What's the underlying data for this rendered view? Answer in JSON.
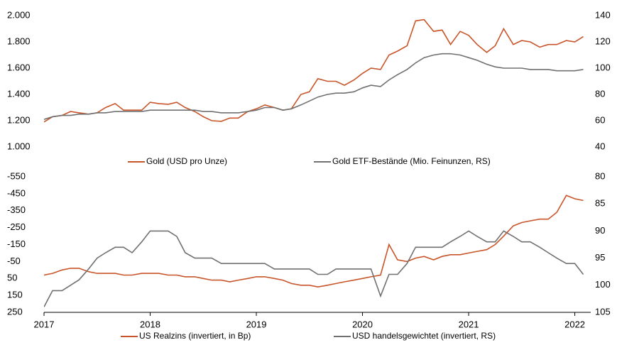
{
  "chart_data": [
    {
      "type": "line",
      "x": [
        2017.0,
        2017.08,
        2017.17,
        2017.25,
        2017.33,
        2017.42,
        2017.5,
        2017.58,
        2017.67,
        2017.75,
        2017.83,
        2017.92,
        2018.0,
        2018.08,
        2018.17,
        2018.25,
        2018.33,
        2018.42,
        2018.5,
        2018.58,
        2018.67,
        2018.75,
        2018.83,
        2018.92,
        2019.0,
        2019.08,
        2019.17,
        2019.25,
        2019.33,
        2019.42,
        2019.5,
        2019.58,
        2019.67,
        2019.75,
        2019.83,
        2019.92,
        2020.0,
        2020.08,
        2020.17,
        2020.25,
        2020.33,
        2020.42,
        2020.5,
        2020.58,
        2020.67,
        2020.75,
        2020.83,
        2020.92,
        2021.0,
        2021.08,
        2021.17,
        2021.25,
        2021.33,
        2021.42,
        2021.5,
        2021.58,
        2021.67,
        2021.75,
        2021.83,
        2021.92,
        2022.0,
        2022.08
      ],
      "xlim": [
        2017,
        2022.15
      ],
      "ylim": [
        1000,
        2000
      ],
      "yticks": [
        {
          "value": 1000,
          "label": "1.000"
        },
        {
          "value": 1200,
          "label": "1.200"
        },
        {
          "value": 1400,
          "label": "1.400"
        },
        {
          "value": 1600,
          "label": "1.600"
        },
        {
          "value": 1800,
          "label": "1.800"
        },
        {
          "value": 2000,
          "label": "2.000"
        }
      ],
      "y2lim": [
        40,
        140
      ],
      "y2ticks": [
        40,
        60,
        80,
        100,
        120,
        140
      ],
      "series": [
        {
          "name": "Gold (USD pro Unze)",
          "color": "#c8552a",
          "values": [
            1190,
            1230,
            1240,
            1270,
            1260,
            1250,
            1260,
            1300,
            1330,
            1280,
            1280,
            1280,
            1340,
            1330,
            1325,
            1340,
            1300,
            1270,
            1230,
            1200,
            1195,
            1220,
            1220,
            1270,
            1290,
            1320,
            1300,
            1280,
            1290,
            1400,
            1420,
            1520,
            1500,
            1500,
            1470,
            1510,
            1560,
            1600,
            1590,
            1700,
            1730,
            1770,
            1960,
            1970,
            1880,
            1890,
            1780,
            1880,
            1850,
            1780,
            1720,
            1770,
            1900,
            1780,
            1810,
            1800,
            1760,
            1780,
            1780,
            1810,
            1800,
            1840
          ]
        },
        {
          "name": "Gold ETF-Bestände (Mio. Feinunzen, RS)",
          "color": "#707070",
          "axis": "y2",
          "values": [
            61,
            63,
            64,
            64,
            65,
            65,
            66,
            66,
            67,
            67,
            67,
            67,
            68,
            68,
            68,
            68,
            68,
            68,
            67,
            67,
            66,
            66,
            66,
            67,
            68,
            70,
            70,
            68,
            69,
            72,
            75,
            78,
            80,
            81,
            81,
            82,
            85,
            87,
            86,
            91,
            95,
            99,
            104,
            108,
            110,
            111,
            111,
            110,
            108,
            106,
            103,
            101,
            100,
            100,
            100,
            99,
            99,
            99,
            98,
            98,
            98,
            99
          ]
        }
      ]
    },
    {
      "type": "line",
      "x": [
        2017.0,
        2017.08,
        2017.17,
        2017.25,
        2017.33,
        2017.42,
        2017.5,
        2017.58,
        2017.67,
        2017.75,
        2017.83,
        2017.92,
        2018.0,
        2018.08,
        2018.17,
        2018.25,
        2018.33,
        2018.42,
        2018.5,
        2018.58,
        2018.67,
        2018.75,
        2018.83,
        2018.92,
        2019.0,
        2019.08,
        2019.17,
        2019.25,
        2019.33,
        2019.42,
        2019.5,
        2019.58,
        2019.67,
        2019.75,
        2019.83,
        2019.92,
        2020.0,
        2020.08,
        2020.17,
        2020.25,
        2020.33,
        2020.42,
        2020.5,
        2020.58,
        2020.67,
        2020.75,
        2020.83,
        2020.92,
        2021.0,
        2021.08,
        2021.17,
        2021.25,
        2021.33,
        2021.42,
        2021.5,
        2021.58,
        2021.67,
        2021.75,
        2021.83,
        2021.92,
        2022.0,
        2022.08
      ],
      "xlim": [
        2017,
        2022.15
      ],
      "xticks": [
        2017,
        2018,
        2019,
        2020,
        2021,
        2022
      ],
      "ylim": [
        250,
        -550
      ],
      "yticks": [
        250,
        150,
        50,
        -50,
        -150,
        -250,
        -350,
        -450,
        -550
      ],
      "y2lim": [
        105,
        80
      ],
      "y2ticks": [
        105,
        100,
        95,
        90,
        85,
        80
      ],
      "series": [
        {
          "name": "US Realzins (invertiert, in Bp)",
          "color": "#c8552a",
          "values": [
            30,
            20,
            0,
            -10,
            -10,
            10,
            20,
            20,
            20,
            30,
            30,
            20,
            20,
            20,
            30,
            30,
            40,
            40,
            50,
            60,
            60,
            70,
            60,
            50,
            40,
            40,
            50,
            60,
            80,
            90,
            90,
            100,
            90,
            80,
            70,
            60,
            50,
            40,
            30,
            -150,
            -60,
            -50,
            -70,
            -80,
            -60,
            -80,
            -90,
            -90,
            -100,
            -110,
            -120,
            -150,
            -200,
            -260,
            -280,
            -290,
            -300,
            -300,
            -340,
            -440,
            -420,
            -410
          ]
        },
        {
          "name": "USD handelsgewichtet (invertiert, RS)",
          "color": "#707070",
          "axis": "y2",
          "values": [
            104,
            101,
            101,
            100,
            99,
            97,
            95,
            94,
            93,
            93,
            94,
            92,
            90,
            90,
            90,
            91,
            94,
            95,
            95,
            95,
            96,
            96,
            96,
            96,
            96,
            96,
            97,
            97,
            97,
            97,
            97,
            98,
            98,
            97,
            97,
            97,
            97,
            97,
            102,
            98,
            98,
            96,
            93,
            93,
            93,
            93,
            92,
            91,
            90,
            91,
            92,
            92,
            90,
            91,
            92,
            92,
            93,
            94,
            95,
            96,
            96,
            98
          ]
        }
      ]
    }
  ]
}
